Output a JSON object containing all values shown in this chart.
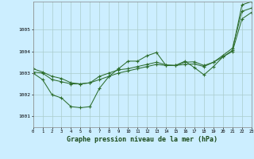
{
  "title": "Graphe pression niveau de la mer (hPa)",
  "bg_color": "#cceeff",
  "grid_color": "#aacccc",
  "line_color": "#2d6e2d",
  "xmin": 0,
  "xmax": 23,
  "ymin": 1000.5,
  "ymax": 1006.3,
  "yticks": [
    1001,
    1002,
    1003,
    1004,
    1005
  ],
  "xticks": [
    0,
    1,
    2,
    3,
    4,
    5,
    6,
    7,
    8,
    9,
    10,
    11,
    12,
    13,
    14,
    15,
    16,
    17,
    18,
    19,
    20,
    21,
    22,
    23
  ],
  "series": [
    [
      1003.2,
      1003.05,
      1002.85,
      1002.75,
      1002.55,
      1002.5,
      1002.55,
      1002.7,
      1002.85,
      1003.0,
      1003.1,
      1003.2,
      1003.3,
      1003.4,
      1003.35,
      1003.35,
      1003.4,
      1003.42,
      1003.3,
      1003.5,
      1003.75,
      1004.0,
      1005.5,
      1005.8
    ],
    [
      1003.0,
      1002.7,
      1002.0,
      1001.85,
      1001.45,
      1001.4,
      1001.45,
      1002.3,
      1002.85,
      1003.2,
      1003.55,
      1003.55,
      1003.8,
      1003.95,
      1003.35,
      1003.35,
      1003.55,
      1003.25,
      1002.92,
      1003.3,
      1003.75,
      1004.05,
      1006.15,
      1006.3
    ],
    [
      1003.05,
      1003.0,
      1002.7,
      1002.6,
      1002.5,
      1002.5,
      1002.55,
      1002.85,
      1003.0,
      1003.15,
      1003.2,
      1003.3,
      1003.4,
      1003.5,
      1003.38,
      1003.35,
      1003.5,
      1003.52,
      1003.35,
      1003.5,
      1003.82,
      1004.15,
      1005.85,
      1006.0
    ]
  ]
}
